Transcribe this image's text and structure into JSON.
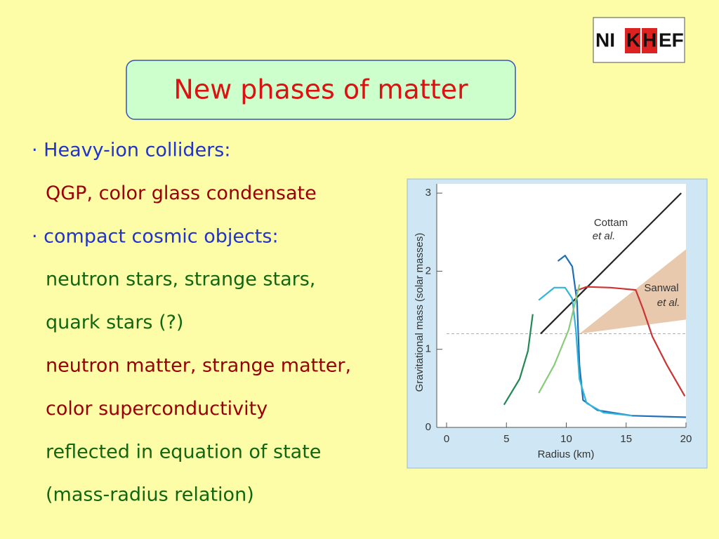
{
  "header": {
    "title": "New phases of matter",
    "logo": [
      "NI",
      "K",
      "H",
      "EF"
    ]
  },
  "bullets": [
    {
      "text": "· Heavy-ion colliders:",
      "color": "#2233cc",
      "indent": false
    },
    {
      "text": "QGP, color glass condensate",
      "color": "#990000",
      "indent": true
    },
    {
      "text": "· compact cosmic objects:",
      "color": "#2233cc",
      "indent": false
    },
    {
      "text": "neutron stars, strange stars,",
      "color": "#116611",
      "indent": true
    },
    {
      "text": "quark stars (?)",
      "color": "#116611",
      "indent": true
    },
    {
      "text": "neutron matter, strange matter,",
      "color": "#990000",
      "indent": true
    },
    {
      "text": "color superconductivity",
      "color": "#990000",
      "indent": true
    },
    {
      "text": "reflected in equation of state",
      "color": "#116611",
      "indent": true
    },
    {
      "text": "(mass-radius relation)",
      "color": "#116611",
      "indent": true
    }
  ],
  "chart_data": {
    "type": "line",
    "xlabel": "Radius (km)",
    "ylabel": "Gravitational mass (solar masses)",
    "xlim": [
      0,
      20
    ],
    "ylim": [
      0,
      3.1
    ],
    "xticks": [
      0,
      5,
      10,
      15,
      20
    ],
    "yticks": [
      0,
      1,
      2,
      3
    ],
    "hline": 1.2,
    "region": {
      "color": "#e8c9ad",
      "x": [
        11.1,
        20,
        20
      ],
      "values": [
        1.2,
        2.28,
        1.38
      ]
    },
    "annotations": [
      {
        "text": "Cottam",
        "italic": false
      },
      {
        "text": "et al.",
        "italic": true
      },
      {
        "text": "Sanwal",
        "italic": false
      },
      {
        "text": "et al.",
        "italic": true
      }
    ],
    "series": [
      {
        "color": "#222222",
        "x": [
          7.86,
          19.6
        ],
        "values": [
          1.2,
          3.0
        ]
      },
      {
        "color": "#cc3333",
        "x": [
          10.8,
          11.7,
          13.7,
          15.8,
          16.4,
          17.2,
          18.4,
          19.9
        ],
        "values": [
          1.75,
          1.8,
          1.79,
          1.76,
          1.52,
          1.16,
          0.8,
          0.4
        ]
      },
      {
        "color": "#1f6fb8",
        "x": [
          9.3,
          9.9,
          10.5,
          10.9,
          11.1,
          11.4,
          12.6,
          15.5,
          20
        ],
        "values": [
          2.13,
          2.2,
          2.06,
          1.61,
          0.8,
          0.35,
          0.22,
          0.15,
          0.13
        ]
      },
      {
        "color": "#33b5d9",
        "x": [
          7.7,
          9,
          9.9,
          10.5,
          10.8,
          11.1,
          11.7,
          13.1,
          15.5
        ],
        "values": [
          1.63,
          1.79,
          1.79,
          1.65,
          1.25,
          0.62,
          0.31,
          0.19,
          0.15
        ]
      },
      {
        "color": "#88cc77",
        "x": [
          7.7,
          9,
          10.2,
          10.9,
          11.1
        ],
        "values": [
          0.44,
          0.8,
          1.25,
          1.7,
          1.83
        ]
      },
      {
        "color": "#228855",
        "x": [
          4.8,
          6.1,
          6.8,
          7.2
        ],
        "values": [
          0.29,
          0.62,
          0.98,
          1.45
        ]
      }
    ]
  }
}
